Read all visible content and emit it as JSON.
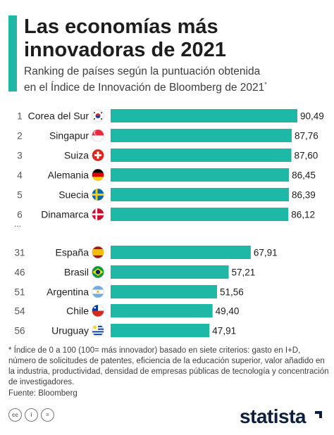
{
  "title_line1": "Las economías más",
  "title_line2": "innovadoras de 2021",
  "subtitle_line1": "Ranking de países según la puntuación obtenida",
  "subtitle_line2": "en el Índice de Innovación de Bloomberg de 2021",
  "subtitle_mark": "*",
  "ellipsis": "...",
  "footnote": "* Índice de 0 a 100 (100= más innovador) basado en siete criterios: gasto en I+D, número de solicitudes de patentes, eficiencia de la educación superior, valor añadido en la industria, productividad, densidad de empresas públicas de tecnología y concentración de investigadores.",
  "source": "Fuente: Bloomberg",
  "license_icons": [
    "cc",
    "i",
    "="
  ],
  "brand": "statista",
  "colors": {
    "accent": "#1fb7a6",
    "bar": "#1fb7a6",
    "brand": "#0d1f3c"
  },
  "chart_data": {
    "type": "bar",
    "orientation": "horizontal",
    "ranks": [
      "1",
      "2",
      "3",
      "4",
      "5",
      "6",
      "31",
      "46",
      "51",
      "54",
      "56"
    ],
    "categories": [
      "Corea del Sur",
      "Singapur",
      "Suiza",
      "Alemania",
      "Suecia",
      "Dinamarca",
      "España",
      "Brasil",
      "Argentina",
      "Chile",
      "Uruguay"
    ],
    "flags": [
      "south-korea",
      "singapore",
      "switzerland",
      "germany",
      "sweden",
      "denmark",
      "spain",
      "brazil",
      "argentina",
      "chile",
      "uruguay"
    ],
    "values": [
      90.49,
      87.76,
      87.6,
      86.45,
      86.39,
      86.12,
      67.91,
      57.21,
      51.56,
      49.4,
      47.91
    ],
    "value_labels": [
      "90,49",
      "87,76",
      "87,60",
      "86,45",
      "86,39",
      "86,12",
      "67,91",
      "57,21",
      "51,56",
      "49,40",
      "47,91"
    ],
    "xlim": [
      0,
      90.49
    ],
    "grid": false
  }
}
